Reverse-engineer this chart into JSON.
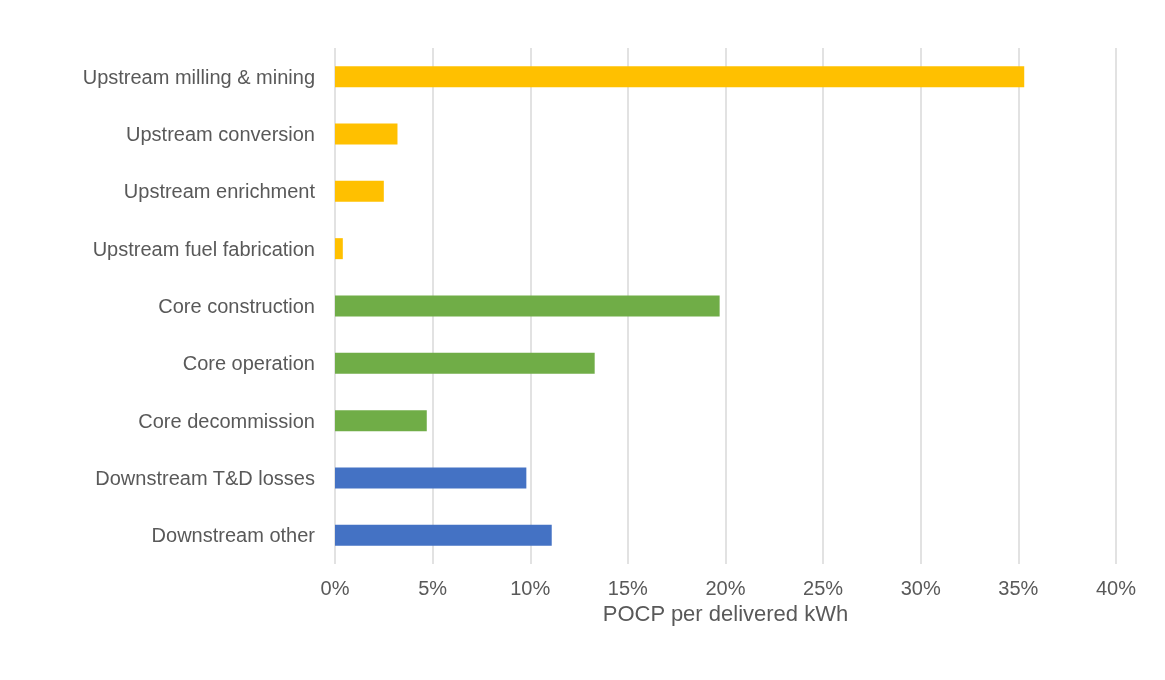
{
  "chart_data": {
    "type": "bar",
    "orientation": "horizontal",
    "xlabel": "POCP per delivered kWh",
    "categories": [
      "Upstream milling & mining",
      "Upstream conversion",
      "Upstream enrichment",
      "Upstream fuel fabrication",
      "Core construction",
      "Core operation",
      "Core decommission",
      "Downstream T&D losses",
      "Downstream other"
    ],
    "values": [
      35.3,
      3.2,
      2.5,
      0.4,
      19.7,
      13.3,
      4.7,
      9.8,
      11.1
    ],
    "colors": [
      "#ffc000",
      "#ffc000",
      "#ffc000",
      "#ffc000",
      "#70ad47",
      "#70ad47",
      "#70ad47",
      "#4472c4",
      "#4472c4"
    ],
    "xlim": [
      0,
      40
    ],
    "xticks": [
      {
        "value": 0,
        "label": "0%"
      },
      {
        "value": 5,
        "label": "5%"
      },
      {
        "value": 10,
        "label": "10%"
      },
      {
        "value": 15,
        "label": "15%"
      },
      {
        "value": 20,
        "label": "20%"
      },
      {
        "value": 25,
        "label": "25%"
      },
      {
        "value": 30,
        "label": "30%"
      },
      {
        "value": 35,
        "label": "35%"
      },
      {
        "value": 40,
        "label": "40%"
      }
    ],
    "grid": "x"
  }
}
